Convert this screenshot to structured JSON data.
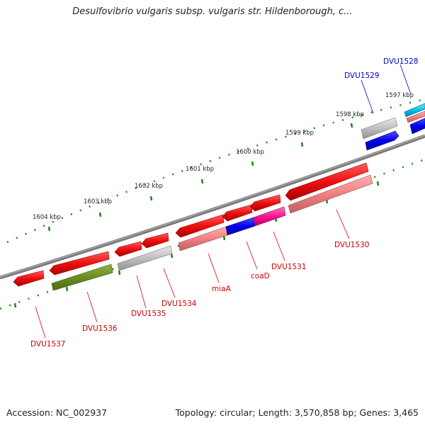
{
  "title": "Desulfovibrio vulgaris subsp. vulgaris str. Hildenborough, c...",
  "footer": {
    "accession": "Accession: NC_002937",
    "summary": "Topology: circular; Length: 3,570,858 bp; Genes: 3,465"
  },
  "ruler": {
    "ticks": [
      "1604 kbp",
      "1603 kbp",
      "1602 kbp",
      "1601 kbp",
      "1600 kbp",
      "1599 kbp",
      "1598 kbp",
      "1597 kbp"
    ]
  },
  "genes": [
    {
      "label": "DVU1537",
      "strand": "-",
      "color": "#ee1111",
      "label_color": "#cc0000"
    },
    {
      "label": "DVU1536",
      "strand": "-",
      "color": "#ee1111",
      "label_color": "#cc0000"
    },
    {
      "label": "DVU1535",
      "strand": "-",
      "color": "#ee1111",
      "label_color": "#cc0000"
    },
    {
      "label": "DVU1534",
      "strand": "-",
      "color": "#ee1111",
      "label_color": "#cc0000"
    },
    {
      "label": "miaA",
      "strand": "-",
      "color": "#ee1111",
      "label_color": "#cc0000"
    },
    {
      "label": "coaD",
      "strand": "-",
      "color": "#ee1111",
      "label_color": "#cc0000"
    },
    {
      "label": "DVU1531",
      "strand": "-",
      "color": "#ee1111",
      "label_color": "#cc0000"
    },
    {
      "label": "DVU1530",
      "strand": "-",
      "color": "#ee1111",
      "label_color": "#cc0000"
    },
    {
      "label": "DVU1529",
      "strand": "+",
      "color": "#0000ee",
      "label_color": "#0000cc"
    },
    {
      "label": "DVU1528",
      "strand": "+",
      "color": "#0000ee",
      "label_color": "#0000cc"
    }
  ],
  "colors": {
    "backbone": "#808080",
    "tick_marks": "#1a8a1a",
    "cog_gray": "#b8b8b8",
    "cog_olive": "#6b8e23",
    "cog_pink": "#f08080",
    "cog_magenta": "#ff1493",
    "cog_blue": "#0000ee",
    "cog_cyan": "#00c0f0"
  }
}
